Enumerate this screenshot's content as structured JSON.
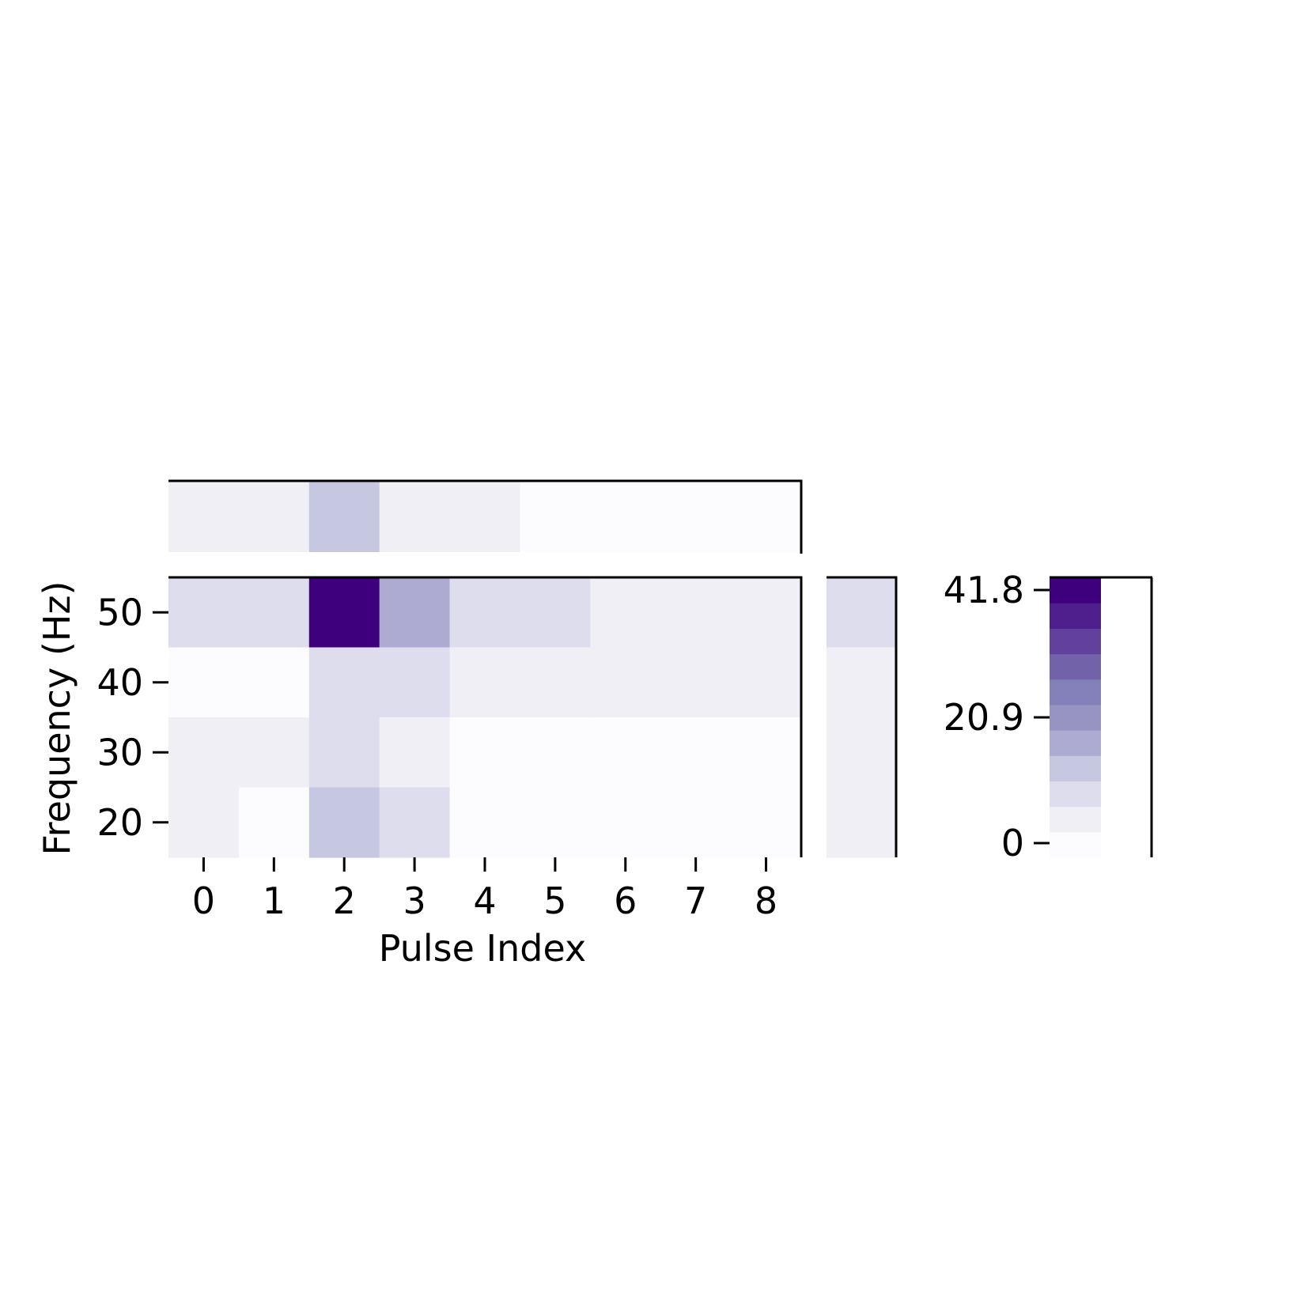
{
  "chart_data": {
    "type": "heatmap",
    "xlabel": "Pulse Index",
    "ylabel": "Frequency (Hz)",
    "x": [
      0,
      1,
      2,
      3,
      4,
      5,
      6,
      7,
      8
    ],
    "y": [
      50,
      40,
      30,
      20
    ],
    "values": [
      [
        8,
        8,
        41.8,
        17,
        10,
        8,
        6,
        5,
        4
      ],
      [
        3,
        3,
        10,
        8,
        7,
        6,
        5,
        5,
        4
      ],
      [
        5,
        5,
        9,
        6,
        2.5,
        2,
        2,
        3,
        3
      ],
      [
        4,
        3.5,
        15,
        9,
        3.5,
        3,
        3,
        2.5,
        2.5
      ]
    ],
    "top_marginal": [
      5,
      4.5,
      14.5,
      7.5,
      4,
      3.5,
      3,
      3,
      2.5
    ],
    "right_marginal": [
      10,
      5,
      4.5,
      4.5
    ],
    "colorbar": {
      "ticks": [
        "0",
        "20.9",
        "41.8"
      ],
      "tick_values": [
        0,
        20.9,
        41.8
      ],
      "vmin": 0,
      "vmax": 41.8,
      "levels": 11,
      "cmap": "Purples",
      "colors": [
        "#fcfbfd",
        "#f0eff6",
        "#dedded",
        "#c6c7e1",
        "#aeabd2",
        "#9793c3",
        "#8481ba",
        "#7162aa",
        "#61419b",
        "#4f208d",
        "#3f007d"
      ]
    }
  }
}
